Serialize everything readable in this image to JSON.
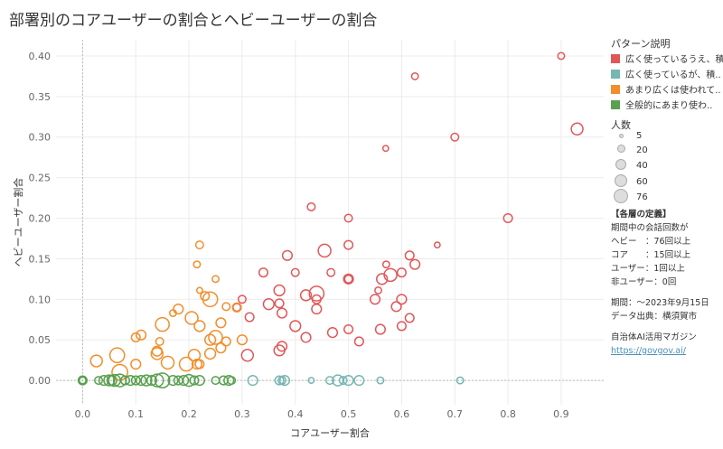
{
  "title": "部署別のコアユーザーの割合とヘビーユーザーの割合",
  "legend": {
    "title": "パターン説明",
    "items": [
      {
        "label": "広く使っているうえ、積..",
        "color": "#e15759"
      },
      {
        "label": "広く使っているが、積..",
        "color": "#76b7b2"
      },
      {
        "label": "あまり広くは使われて..",
        "color": "#f28e2b"
      },
      {
        "label": "全般的にあまり使わ..",
        "color": "#59a14f"
      }
    ]
  },
  "size_legend": {
    "title": "人数",
    "labels": [
      "5",
      "20",
      "40",
      "60",
      "76"
    ]
  },
  "definitions": {
    "heading": "【各層の定義】",
    "lines": [
      "期間中の会話回数が",
      "ヘビー　：76回以上",
      "コア　　：15回以上",
      "ユーザー：1回以上",
      "非ユーザー：0回"
    ],
    "period": "期間：～2023年9月15日",
    "source": "データ出典：横須賀市",
    "brand": "自治体AI活用マガジン",
    "url": "https://govgov.ai/"
  },
  "chart_data": {
    "type": "scatter",
    "title": "部署別のコアユーザーの割合とヘビーユーザーの割合",
    "xlabel": "コアユーザー割合",
    "ylabel": "ヘビーユーザー割合",
    "xlim": [
      -0.05,
      0.98
    ],
    "ylim": [
      -0.03,
      0.42
    ],
    "xticks": [
      "0.0",
      "0.1",
      "0.2",
      "0.3",
      "0.4",
      "0.5",
      "0.6",
      "0.7",
      "0.8",
      "0.9"
    ],
    "yticks": [
      "0.00",
      "0.05",
      "0.10",
      "0.15",
      "0.20",
      "0.25",
      "0.30",
      "0.35",
      "0.40"
    ],
    "size_field": "人数",
    "series": [
      {
        "name": "広く使っているうえ、積..",
        "color": "#e15759",
        "points": [
          [
            0.9,
            0.4,
            4
          ],
          [
            0.625,
            0.375,
            4
          ],
          [
            0.93,
            0.31,
            9
          ],
          [
            0.7,
            0.3,
            5
          ],
          [
            0.57,
            0.286,
            3
          ],
          [
            0.43,
            0.214,
            5
          ],
          [
            0.8,
            0.2,
            6
          ],
          [
            0.5,
            0.2,
            5
          ],
          [
            0.667,
            0.167,
            3
          ],
          [
            0.455,
            0.16,
            10
          ],
          [
            0.5,
            0.167,
            6
          ],
          [
            0.385,
            0.154,
            7
          ],
          [
            0.615,
            0.154,
            6
          ],
          [
            0.571,
            0.143,
            4
          ],
          [
            0.625,
            0.143,
            7
          ],
          [
            0.34,
            0.133,
            6
          ],
          [
            0.4,
            0.133,
            5
          ],
          [
            0.467,
            0.133,
            5
          ],
          [
            0.5,
            0.125,
            5
          ],
          [
            0.5,
            0.125,
            7
          ],
          [
            0.579,
            0.13,
            10
          ],
          [
            0.6,
            0.133,
            6
          ],
          [
            0.563,
            0.125,
            8
          ],
          [
            0.37,
            0.111,
            8
          ],
          [
            0.556,
            0.111,
            4
          ],
          [
            0.3,
            0.1,
            5
          ],
          [
            0.314,
            0.078,
            6
          ],
          [
            0.35,
            0.094,
            8
          ],
          [
            0.37,
            0.095,
            6
          ],
          [
            0.42,
            0.105,
            8
          ],
          [
            0.44,
            0.1,
            6
          ],
          [
            0.44,
            0.107,
            12
          ],
          [
            0.59,
            0.091,
            7
          ],
          [
            0.55,
            0.1,
            7
          ],
          [
            0.6,
            0.1,
            7
          ],
          [
            0.29,
            0.09,
            5
          ],
          [
            0.375,
            0.083,
            7
          ],
          [
            0.44,
            0.088,
            7
          ],
          [
            0.4,
            0.067,
            8
          ],
          [
            0.615,
            0.077,
            6
          ],
          [
            0.5,
            0.063,
            6
          ],
          [
            0.56,
            0.063,
            7
          ],
          [
            0.6,
            0.067,
            6
          ],
          [
            0.42,
            0.053,
            7
          ],
          [
            0.47,
            0.059,
            7
          ],
          [
            0.37,
            0.037,
            8
          ],
          [
            0.375,
            0.042,
            7
          ],
          [
            0.31,
            0.031,
            9
          ],
          [
            0.52,
            0.048,
            6
          ]
        ]
      },
      {
        "name": "広く使っているが、積..",
        "color": "#76b7b2",
        "points": [
          [
            0.32,
            0.0,
            7
          ],
          [
            0.37,
            0.0,
            6
          ],
          [
            0.375,
            0.0,
            5
          ],
          [
            0.38,
            0.0,
            7
          ],
          [
            0.43,
            0.0,
            3
          ],
          [
            0.465,
            0.0,
            5
          ],
          [
            0.48,
            0.0,
            8
          ],
          [
            0.49,
            0.0,
            5
          ],
          [
            0.5,
            0.0,
            7
          ],
          [
            0.52,
            0.0,
            7
          ],
          [
            0.56,
            0.0,
            4
          ],
          [
            0.71,
            0.0,
            4
          ]
        ]
      },
      {
        "name": "あまり広くは使われて..",
        "color": "#f28e2b",
        "points": [
          [
            0.22,
            0.167,
            5
          ],
          [
            0.215,
            0.143,
            4
          ],
          [
            0.25,
            0.125,
            4
          ],
          [
            0.22,
            0.111,
            3
          ],
          [
            0.23,
            0.104,
            6
          ],
          [
            0.24,
            0.1,
            12
          ],
          [
            0.27,
            0.091,
            5
          ],
          [
            0.29,
            0.09,
            6
          ],
          [
            0.18,
            0.088,
            7
          ],
          [
            0.17,
            0.083,
            4
          ],
          [
            0.15,
            0.069,
            11
          ],
          [
            0.205,
            0.077,
            10
          ],
          [
            0.22,
            0.067,
            8
          ],
          [
            0.26,
            0.071,
            7
          ],
          [
            0.24,
            0.05,
            8
          ],
          [
            0.25,
            0.053,
            11
          ],
          [
            0.27,
            0.048,
            6
          ],
          [
            0.3,
            0.05,
            7
          ],
          [
            0.11,
            0.056,
            7
          ],
          [
            0.1,
            0.053,
            6
          ],
          [
            0.145,
            0.048,
            5
          ],
          [
            0.26,
            0.04,
            7
          ],
          [
            0.14,
            0.036,
            7
          ],
          [
            0.14,
            0.033,
            9
          ],
          [
            0.21,
            0.031,
            9
          ],
          [
            0.065,
            0.031,
            12
          ],
          [
            0.24,
            0.033,
            8
          ],
          [
            0.026,
            0.024,
            9
          ],
          [
            0.1,
            0.02,
            7
          ],
          [
            0.16,
            0.022,
            10
          ],
          [
            0.195,
            0.02,
            11
          ],
          [
            0.215,
            0.02,
            7
          ],
          [
            0.22,
            0.02,
            6
          ],
          [
            0.07,
            0.01,
            13
          ]
        ]
      },
      {
        "name": "全般的にあまり使わ..",
        "color": "#59a14f",
        "points": [
          [
            0.0,
            0.0,
            5
          ],
          [
            0.0,
            0.0,
            4
          ],
          [
            0.0,
            0.0,
            6
          ],
          [
            0.03,
            0.0,
            5
          ],
          [
            0.04,
            0.0,
            7
          ],
          [
            0.05,
            0.0,
            8
          ],
          [
            0.055,
            0.0,
            7
          ],
          [
            0.06,
            0.0,
            9
          ],
          [
            0.07,
            0.0,
            10
          ],
          [
            0.08,
            0.0,
            6
          ],
          [
            0.09,
            0.0,
            7
          ],
          [
            0.1,
            0.0,
            6
          ],
          [
            0.11,
            0.0,
            7
          ],
          [
            0.12,
            0.0,
            8
          ],
          [
            0.13,
            0.0,
            7
          ],
          [
            0.14,
            0.0,
            10
          ],
          [
            0.15,
            0.0,
            12
          ],
          [
            0.17,
            0.0,
            7
          ],
          [
            0.18,
            0.0,
            6
          ],
          [
            0.19,
            0.0,
            7
          ],
          [
            0.2,
            0.0,
            9
          ],
          [
            0.21,
            0.0,
            6
          ],
          [
            0.22,
            0.0,
            7
          ],
          [
            0.25,
            0.0,
            5
          ],
          [
            0.265,
            0.0,
            6
          ],
          [
            0.275,
            0.0,
            7
          ],
          [
            0.28,
            0.0,
            5
          ]
        ]
      }
    ]
  }
}
